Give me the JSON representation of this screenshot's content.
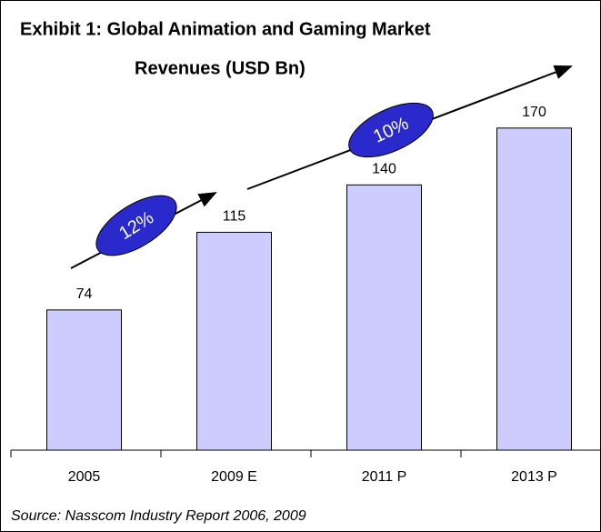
{
  "chart_data": {
    "type": "bar",
    "title": [
      "Exhibit 1: Global Animation and Gaming Market",
      "Revenues (USD Bn)"
    ],
    "categories": [
      "2005",
      "2009 E",
      "2011 P",
      "2013 P"
    ],
    "values": [
      74,
      115,
      140,
      170
    ],
    "color": "#ccccff",
    "ylim": [
      0,
      180
    ],
    "annotations": [
      "12%",
      "10%"
    ],
    "source": "Source: Nasscom Industry Report 2006, 2009"
  }
}
